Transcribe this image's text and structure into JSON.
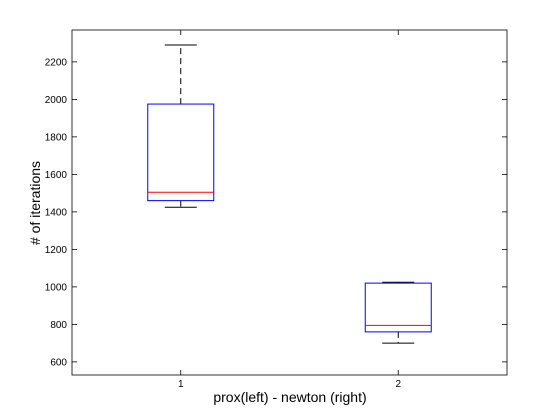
{
  "chart_data": {
    "type": "box",
    "title": "",
    "xlabel": "prox(left) - newton (right)",
    "ylabel": "# of iterations",
    "categories": [
      "1",
      "2"
    ],
    "ylim": [
      530,
      2370
    ],
    "yticks": [
      600,
      800,
      1000,
      1200,
      1400,
      1600,
      1800,
      2000,
      2200
    ],
    "grid": false,
    "boxes": [
      {
        "category": "1",
        "whisker_low": 1425,
        "q1": 1460,
        "median": 1505,
        "q3": 1975,
        "whisker_high": 2290
      },
      {
        "category": "2",
        "whisker_low": 700,
        "q1": 760,
        "median": 795,
        "q3": 1020,
        "whisker_high": 1025
      }
    ],
    "colors": {
      "box": "#0000ff",
      "median": "#ff0000",
      "whisker": "#000000",
      "axes": "#000000"
    }
  }
}
